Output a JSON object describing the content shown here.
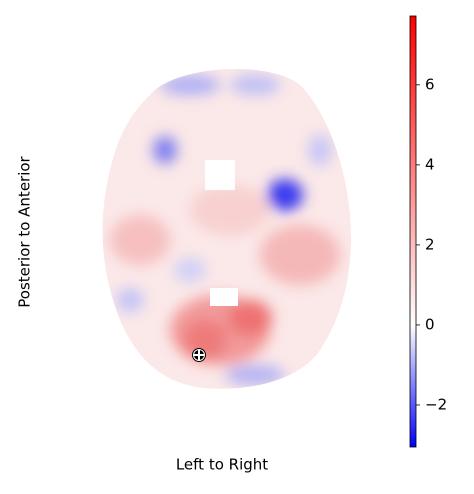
{
  "chart_data": {
    "type": "image",
    "xlabel": "Left to Right",
    "ylabel": "Posterior to Anterior",
    "colorbar": {
      "clim": [
        -3.05,
        7.72
      ],
      "ticks": [
        {
          "value": -2,
          "label": "−2"
        },
        0,
        2,
        4,
        6
      ],
      "colors": [
        "#0000ff",
        "#ffffff",
        "#ff0000"
      ],
      "center": 0
    }
  }
}
